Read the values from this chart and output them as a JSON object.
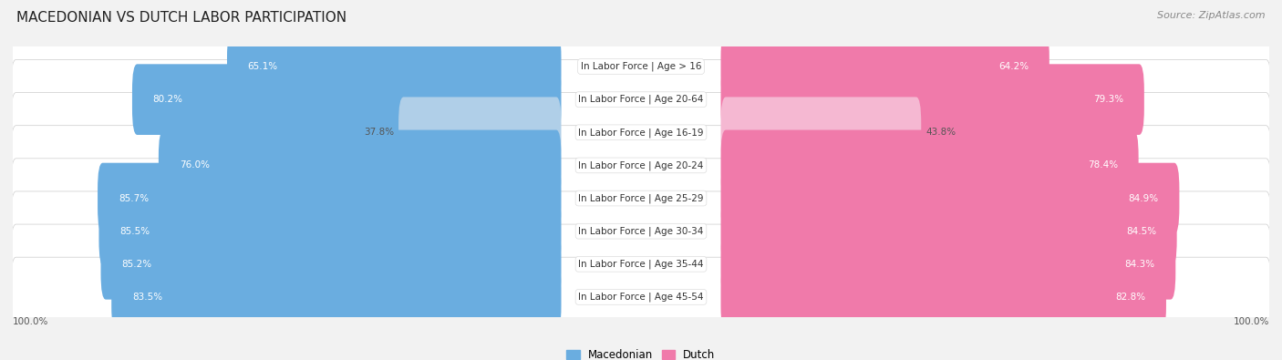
{
  "title": "MACEDONIAN VS DUTCH LABOR PARTICIPATION",
  "source": "Source: ZipAtlas.com",
  "categories": [
    "In Labor Force | Age > 16",
    "In Labor Force | Age 20-64",
    "In Labor Force | Age 16-19",
    "In Labor Force | Age 20-24",
    "In Labor Force | Age 25-29",
    "In Labor Force | Age 30-34",
    "In Labor Force | Age 35-44",
    "In Labor Force | Age 45-54"
  ],
  "macedonian": [
    65.1,
    80.2,
    37.8,
    76.0,
    85.7,
    85.5,
    85.2,
    83.5
  ],
  "dutch": [
    64.2,
    79.3,
    43.8,
    78.4,
    84.9,
    84.5,
    84.3,
    82.8
  ],
  "macedonian_color_full": "#6aade0",
  "macedonian_color_light": "#b0cfe8",
  "dutch_color_full": "#f07aaa",
  "dutch_color_light": "#f5b8d2",
  "row_bg_color": "#e8e8e8",
  "background_color": "#f2f2f2",
  "max_value": 100.0,
  "light_threshold": 50.0,
  "label_fontsize": 7.5,
  "value_fontsize": 7.5,
  "title_fontsize": 11,
  "source_fontsize": 8
}
